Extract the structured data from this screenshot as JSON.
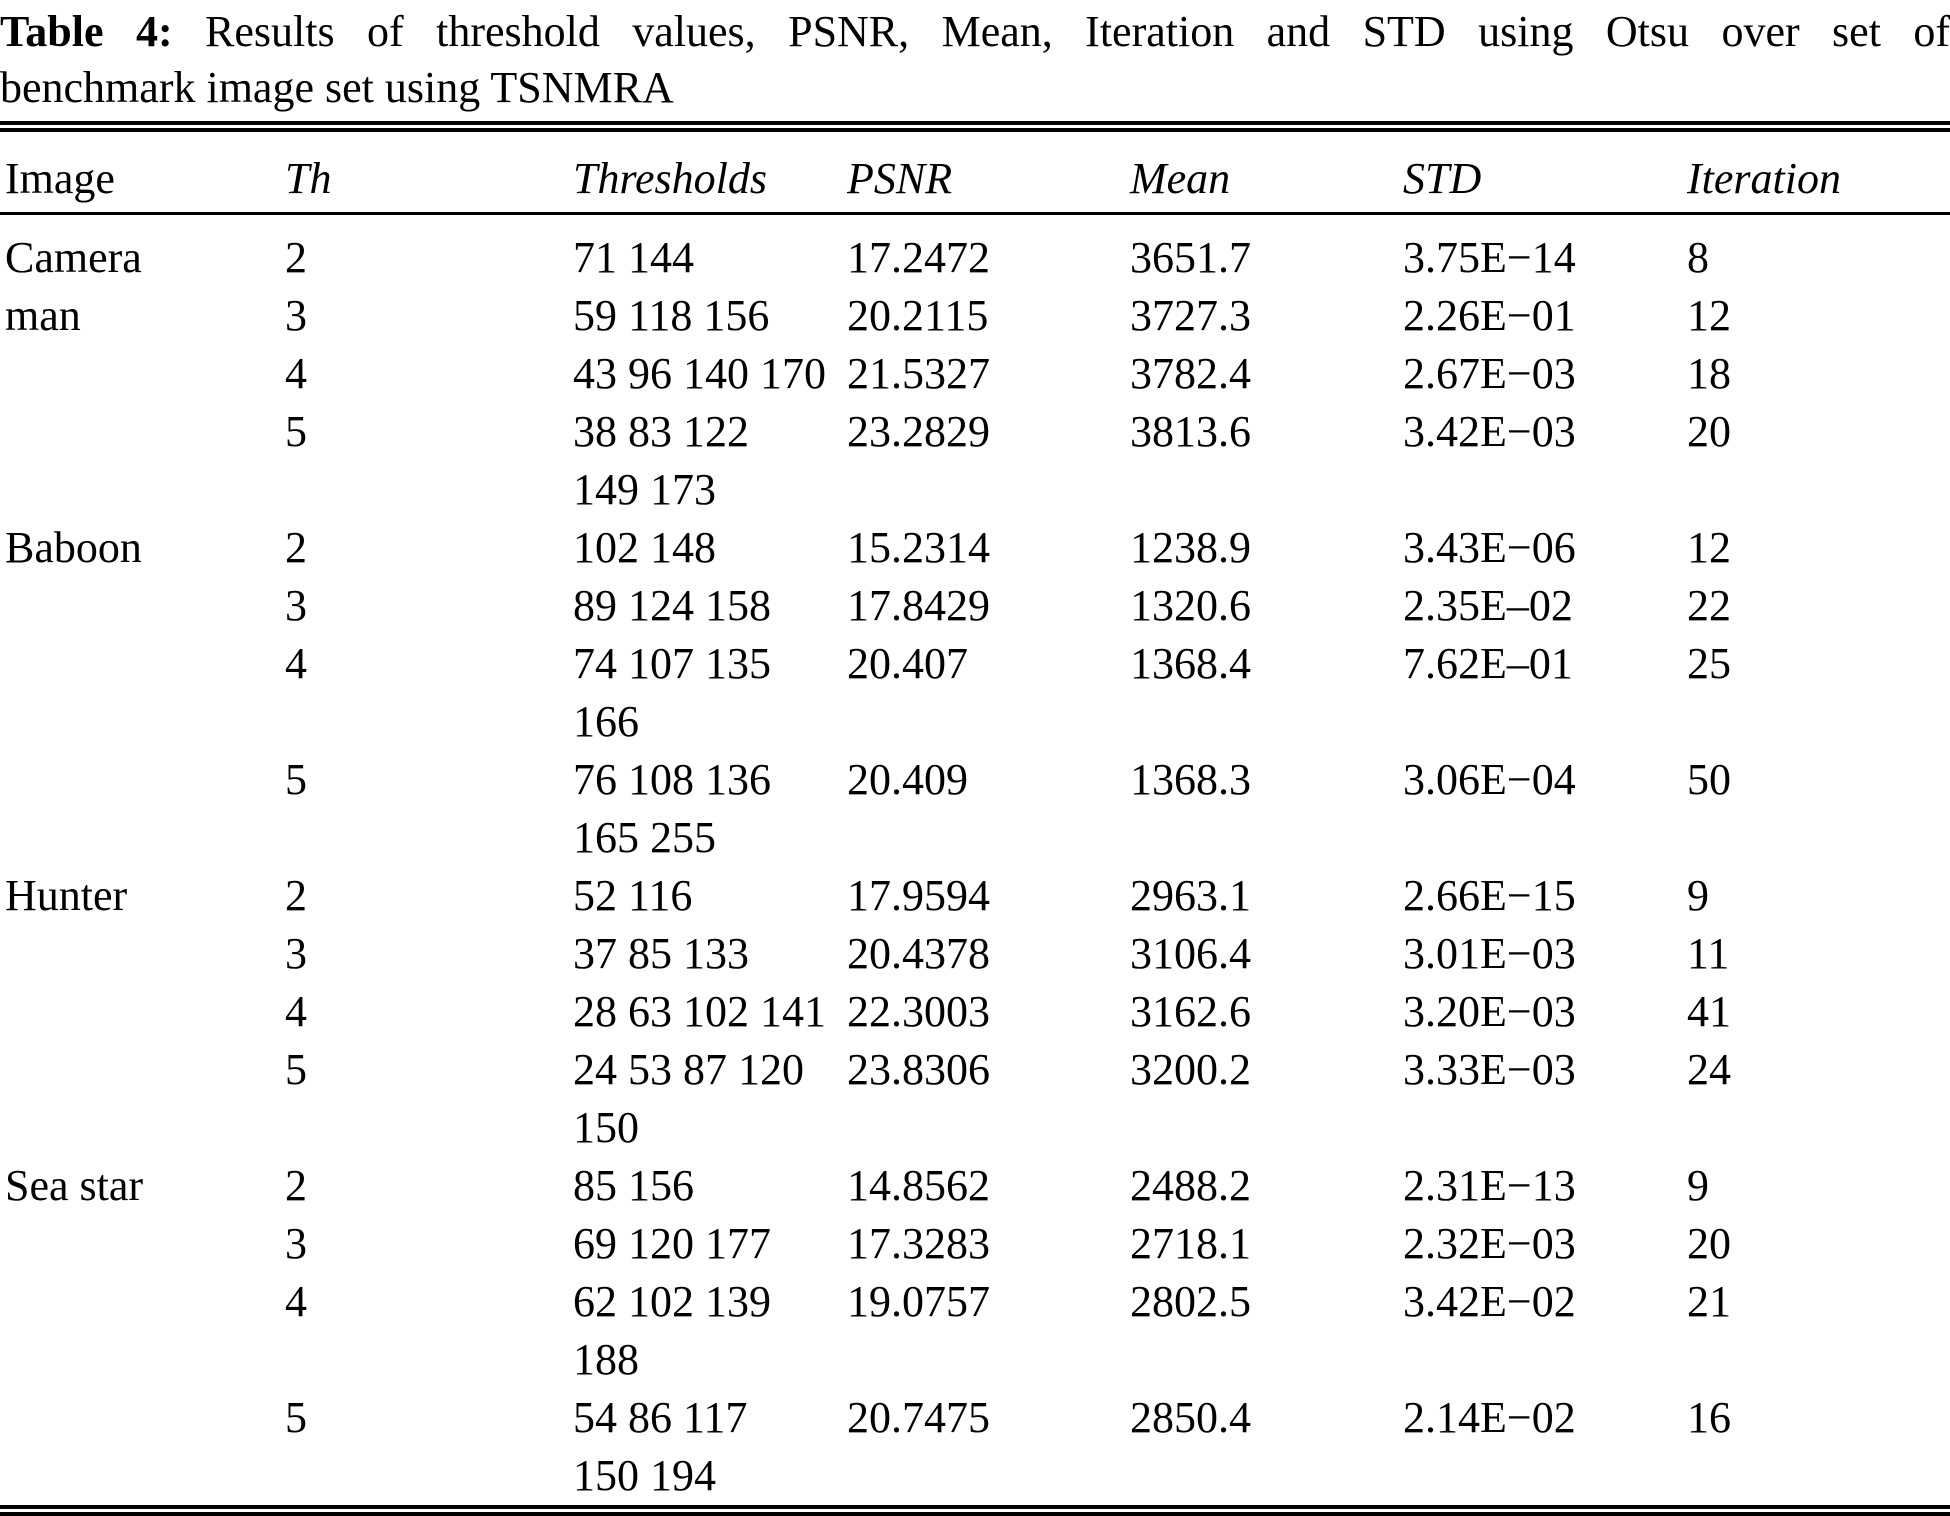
{
  "colors": {
    "text": "#000000",
    "background": "#ffffff"
  },
  "caption": {
    "label": "Table 4:",
    "line1": "Results of threshold values, PSNR, Mean, Iteration and STD using Otsu over set of",
    "line2": "benchmark image set using TSNMRA"
  },
  "table": {
    "columns": [
      "Image",
      "Th",
      "Thresholds",
      "PSNR",
      "Mean",
      "STD",
      "Iteration"
    ],
    "column_keys": [
      "image",
      "th",
      "thresholds",
      "psnr",
      "mean",
      "std",
      "iteration"
    ],
    "rows": [
      {
        "image": "Camera",
        "th": "2",
        "thresholds": [
          "71 144"
        ],
        "psnr": "17.2472",
        "mean": "3651.7",
        "std": "3.75E−14",
        "iteration": "8"
      },
      {
        "image": "man",
        "th": "3",
        "thresholds": [
          "59 118 156"
        ],
        "psnr": "20.2115",
        "mean": "3727.3",
        "std": "2.26E−01",
        "iteration": "12"
      },
      {
        "image": "",
        "th": "4",
        "thresholds": [
          "43 96 140 170"
        ],
        "psnr": "21.5327",
        "mean": "3782.4",
        "std": "2.67E−03",
        "iteration": "18"
      },
      {
        "image": "",
        "th": "5",
        "thresholds": [
          "38 83 122",
          "149 173"
        ],
        "psnr": "23.2829",
        "mean": "3813.6",
        "std": "3.42E−03",
        "iteration": "20"
      },
      {
        "image": "Baboon",
        "th": "2",
        "thresholds": [
          "102 148"
        ],
        "psnr": "15.2314",
        "mean": "1238.9",
        "std": "3.43E−06",
        "iteration": "12"
      },
      {
        "image": "",
        "th": "3",
        "thresholds": [
          "89 124 158"
        ],
        "psnr": "17.8429",
        "mean": "1320.6",
        "std": "2.35E–02",
        "iteration": "22"
      },
      {
        "image": "",
        "th": "4",
        "thresholds": [
          "74 107 135",
          "166"
        ],
        "psnr": "20.407",
        "mean": "1368.4",
        "std": "7.62E–01",
        "iteration": "25"
      },
      {
        "image": "",
        "th": "5",
        "thresholds": [
          "76 108 136",
          "165 255"
        ],
        "psnr": "20.409",
        "mean": "1368.3",
        "std": "3.06E−04",
        "iteration": "50"
      },
      {
        "image": "Hunter",
        "th": "2",
        "thresholds": [
          "52 116"
        ],
        "psnr": "17.9594",
        "mean": "2963.1",
        "std": "2.66E−15",
        "iteration": "9"
      },
      {
        "image": "",
        "th": "3",
        "thresholds": [
          "37 85 133"
        ],
        "psnr": "20.4378",
        "mean": "3106.4",
        "std": "3.01E−03",
        "iteration": "11"
      },
      {
        "image": "",
        "th": "4",
        "thresholds": [
          "28 63 102 141"
        ],
        "psnr": "22.3003",
        "mean": "3162.6",
        "std": "3.20E−03",
        "iteration": "41"
      },
      {
        "image": "",
        "th": "5",
        "thresholds": [
          "24 53 87 120",
          "150"
        ],
        "psnr": "23.8306",
        "mean": "3200.2",
        "std": "3.33E−03",
        "iteration": "24"
      },
      {
        "image": "Sea star",
        "th": "2",
        "thresholds": [
          "85 156"
        ],
        "psnr": "14.8562",
        "mean": "2488.2",
        "std": "2.31E−13",
        "iteration": "9"
      },
      {
        "image": "",
        "th": "3",
        "thresholds": [
          "69 120 177"
        ],
        "psnr": "17.3283",
        "mean": "2718.1",
        "std": "2.32E−03",
        "iteration": "20"
      },
      {
        "image": "",
        "th": "4",
        "thresholds": [
          "62 102 139",
          "188"
        ],
        "psnr": "19.0757",
        "mean": "2802.5",
        "std": "3.42E−02",
        "iteration": "21"
      },
      {
        "image": "",
        "th": "5",
        "thresholds": [
          "54 86 117",
          "150 194"
        ],
        "psnr": "20.7475",
        "mean": "2850.4",
        "std": "2.14E−02",
        "iteration": "16"
      }
    ]
  }
}
